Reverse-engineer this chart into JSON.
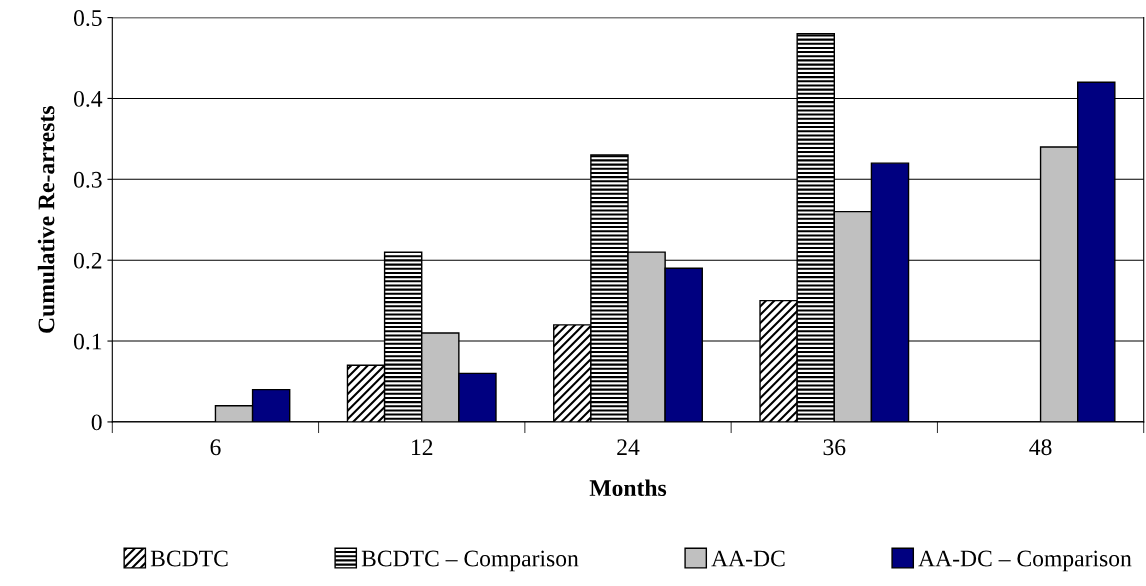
{
  "chart_data": {
    "type": "bar",
    "xlabel": "Months",
    "ylabel": "Cumulative Re-arrests",
    "categories": [
      "6",
      "12",
      "24",
      "36",
      "48"
    ],
    "series": [
      {
        "name": "BCDTC",
        "color": "#000000",
        "values": [
          null,
          0.07,
          0.12,
          0.15,
          null
        ]
      },
      {
        "name": "BCDTC – Comparison",
        "color": "#000000",
        "values": [
          null,
          0.21,
          0.33,
          0.48,
          null
        ]
      },
      {
        "name": "AA-DC",
        "color": "#c0c0c0",
        "values": [
          0.02,
          0.11,
          0.21,
          0.26,
          0.34
        ]
      },
      {
        "name": "AA-DC – Comparison",
        "color": "#000080",
        "values": [
          0.04,
          0.06,
          0.19,
          0.32,
          0.42
        ]
      }
    ],
    "ylim": [
      0,
      0.5
    ],
    "yticks": [
      0,
      0.1,
      0.2,
      0.3,
      0.4,
      0.5
    ],
    "grid": "y",
    "legend": "bottom"
  }
}
